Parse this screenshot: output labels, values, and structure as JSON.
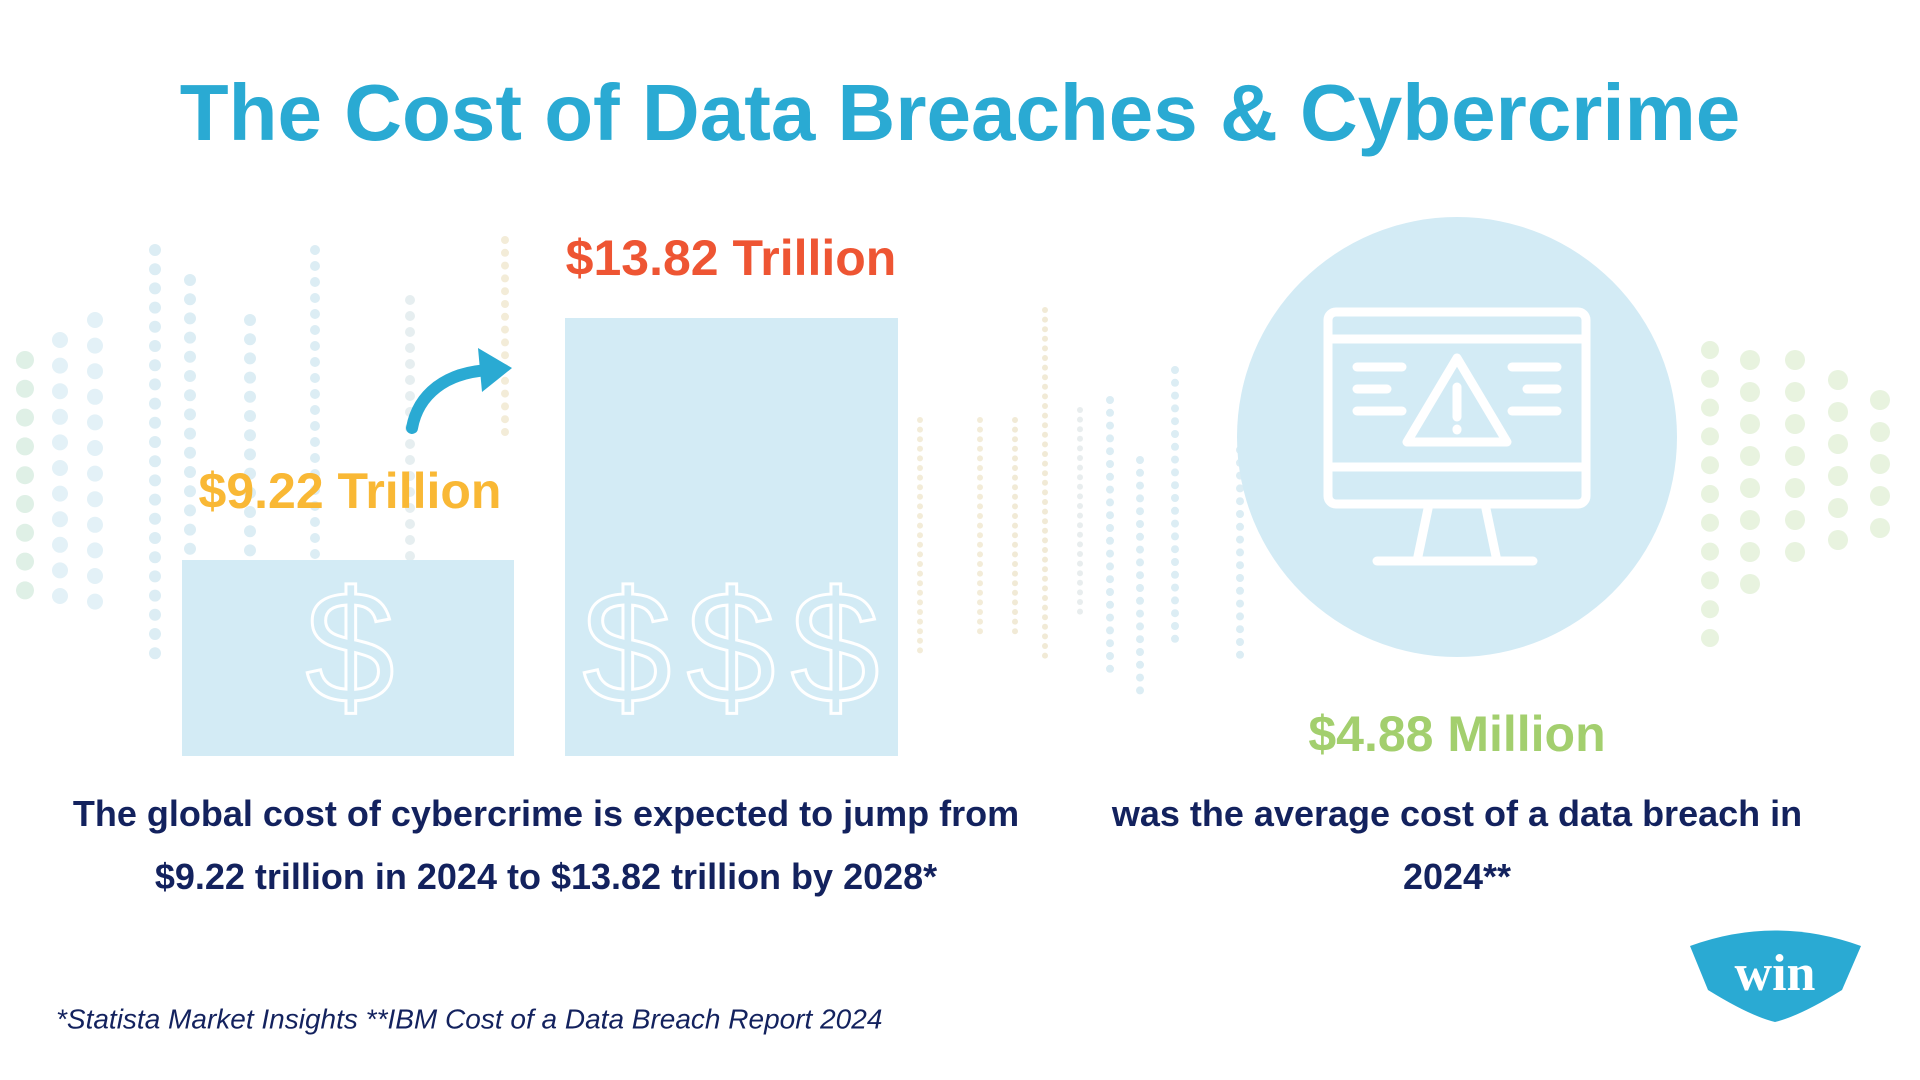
{
  "title": "The Cost of Data Breaches & Cybercrime",
  "cybercrime": {
    "current_label": "$9.22 Trillion",
    "projected_label": "$13.82 Trillion",
    "description": "The global cost of cybercrime is expected to jump from $9.22 trillion in 2024 to $13.82 trillion by 2028*"
  },
  "breach": {
    "label": "$4.88 Million",
    "description": "was the average cost of a data breach in 2024**"
  },
  "footnote": "*Statista Market Insights **IBM Cost of a Data Breach Report 2024",
  "logo": "win"
}
